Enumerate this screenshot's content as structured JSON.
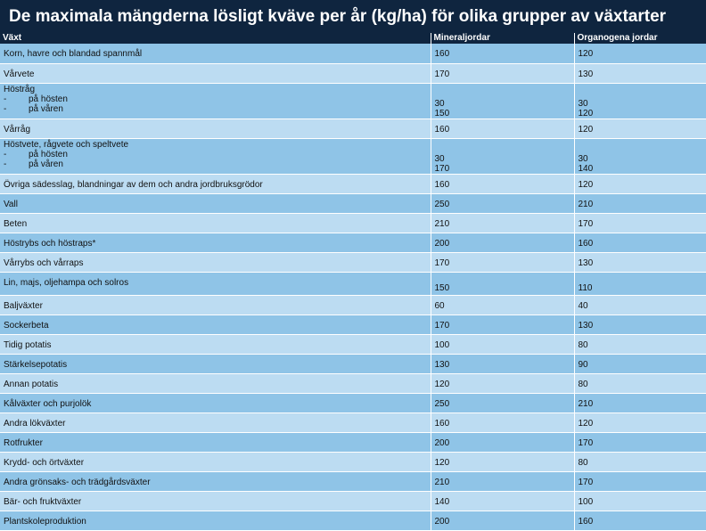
{
  "title": "De maximala mängderna lösligt kväve per år (kg/ha) för olika grupper av växtarter",
  "headers": [
    "Växt",
    "Mineraljordar",
    "Organogena jordar"
  ],
  "rows": [
    {
      "label": "Korn, havre och blandad spannmål",
      "mineral": "160",
      "organic": "120"
    },
    {
      "label": "Vårvete",
      "mineral": "170",
      "organic": "130"
    },
    {
      "label": "Höstråg",
      "subs": [
        "på hösten",
        "på våren"
      ],
      "mineral": [
        "30",
        "150"
      ],
      "organic": [
        "30",
        "120"
      ]
    },
    {
      "label": "Vårråg",
      "mineral": "160",
      "organic": "120"
    },
    {
      "label": "Höstvete, rågvete och speltvete",
      "subs": [
        "på hösten",
        "på våren"
      ],
      "mineral": [
        "30",
        "170"
      ],
      "organic": [
        "30",
        "140"
      ]
    },
    {
      "label": "Övriga sädesslag, blandningar av dem och andra jordbruksgrödor",
      "mineral": "160",
      "organic": "120"
    },
    {
      "label": "Vall",
      "mineral": "250",
      "organic": "210"
    },
    {
      "label": "Beten",
      "mineral": "210",
      "organic": "170"
    },
    {
      "label": "Höstrybs och höstraps*",
      "mineral": "200",
      "organic": "160"
    },
    {
      "label": "Vårrybs och vårraps",
      "mineral": "170",
      "organic": "130"
    },
    {
      "label": "Lin, majs, oljehampa och solros",
      "mineral": "150",
      "organic": "110"
    },
    {
      "label": "Baljväxter",
      "mineral": "60",
      "organic": "40"
    },
    {
      "label": "Sockerbeta",
      "mineral": "170",
      "organic": "130"
    },
    {
      "label": "Tidig potatis",
      "mineral": "100",
      "organic": "80"
    },
    {
      "label": "Stärkelsepotatis",
      "mineral": "130",
      "organic": "90"
    },
    {
      "label": "Annan potatis",
      "mineral": "120",
      "organic": "80"
    },
    {
      "label": "Kålväxter och purjolök",
      "mineral": "250",
      "organic": "210"
    },
    {
      "label": "Andra lökväxter",
      "mineral": "160",
      "organic": "120"
    },
    {
      "label": "Rotfrukter",
      "mineral": "200",
      "organic": "170"
    },
    {
      "label": "Krydd- och örtväxter",
      "mineral": "120",
      "organic": "80"
    },
    {
      "label": "Andra grönsaks- och trädgårdsväxter",
      "mineral": "210",
      "organic": "170"
    },
    {
      "label": "Bär- och fruktväxter",
      "mineral": "140",
      "organic": "100"
    },
    {
      "label": "Plantskoleproduktion",
      "mineral": "200",
      "organic": "160"
    }
  ],
  "colors": {
    "header": "#0f253f",
    "row_dark": "#8fc4e7",
    "row_light": "#bcdcf2"
  }
}
